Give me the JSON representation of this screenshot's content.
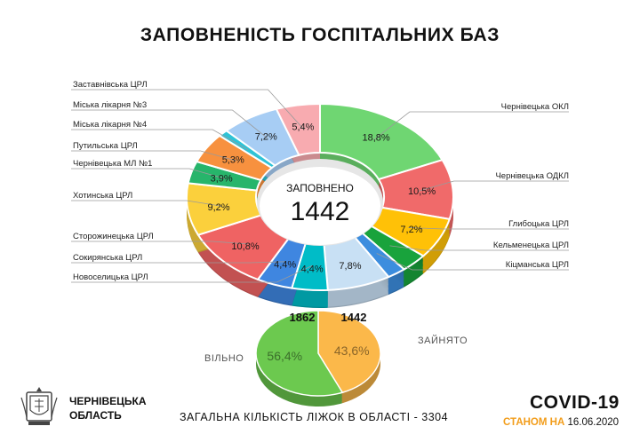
{
  "title": "ЗАПОВНЕНІСТЬ ГОСПІТАЛЬНИХ БАЗ",
  "chart_data": [
    {
      "type": "pie",
      "variant": "donut",
      "center_label": "ЗАПОВНЕНО",
      "center_value": "1442",
      "slices": [
        {
          "label": "Чернівецька ОКЛ",
          "value": 18.8,
          "text": "18,8%",
          "color": "#6fd672"
        },
        {
          "label": "Чернівецька ОДКЛ",
          "value": 10.5,
          "text": "10,5%",
          "color": "#f06a6a"
        },
        {
          "label": "Глибоцька ЦРЛ",
          "value": 7.2,
          "text": "7,2%",
          "color": "#ffc107"
        },
        {
          "label": "Кельменецька ЦРЛ",
          "value": 3.3,
          "text": "",
          "color": "#19a33c"
        },
        {
          "label": "Кіцманська ЦРЛ",
          "value": 2.3,
          "text": "",
          "color": "#3c8dde"
        },
        {
          "label": "",
          "value": 7.8,
          "text": "7,8%",
          "color": "#c8e0f4"
        },
        {
          "label": "Новоселицька ЦРЛ",
          "value": 4.4,
          "text": "4,4%",
          "color": "#00bcc7"
        },
        {
          "label": "Сокирянська ЦРЛ",
          "value": 4.4,
          "text": "4,4%",
          "color": "#3f86e0"
        },
        {
          "label": "Сторожинецька ЦРЛ",
          "value": 10.8,
          "text": "10,8%",
          "color": "#ef6363"
        },
        {
          "label": "Хотинська ЦРЛ",
          "value": 9.2,
          "text": "9,2%",
          "color": "#fbd03c"
        },
        {
          "label": "Чернівецька МЛ №1",
          "value": 3.9,
          "text": "3,9%",
          "color": "#27b56b"
        },
        {
          "label": "Путильська ЦРЛ",
          "value": 5.3,
          "text": "5,3%",
          "color": "#f7913f"
        },
        {
          "label": "Міська лікарня №4",
          "value": 1.2,
          "text": "",
          "color": "#2fc3d6"
        },
        {
          "label": "Міська лікарня №3",
          "value": 7.2,
          "text": "7,2%",
          "color": "#a7cdf4"
        },
        {
          "label": "Заставнівська ЦРЛ",
          "value": 5.4,
          "text": "5,4%",
          "color": "#f8abb0"
        }
      ]
    },
    {
      "type": "pie",
      "slices": [
        {
          "label": "ЗАЙНЯТО",
          "value": 1442,
          "percent_text": "43,6%",
          "color": "#fbb84a"
        },
        {
          "label": "ВІЛЬНО",
          "value": 1862,
          "percent_text": "56,4%",
          "color": "#6cc94f"
        }
      ]
    }
  ],
  "footer": {
    "total_text": "ЗАГАЛЬНА КІЛЬКІСТЬ ЛІЖОК В ОБЛАСТІ  - 3304",
    "region_line1": "ЧЕРНІВЕЦЬКА",
    "region_line2": "ОБЛАСТЬ",
    "covid": "COVID-19",
    "as_of_prefix": "СТАНОМ НА",
    "as_of_date": "16.06.2020"
  },
  "colors": {
    "accent": "#f29d1b"
  },
  "icons": {
    "coat_of_arms": "coat-of-arms-icon"
  }
}
